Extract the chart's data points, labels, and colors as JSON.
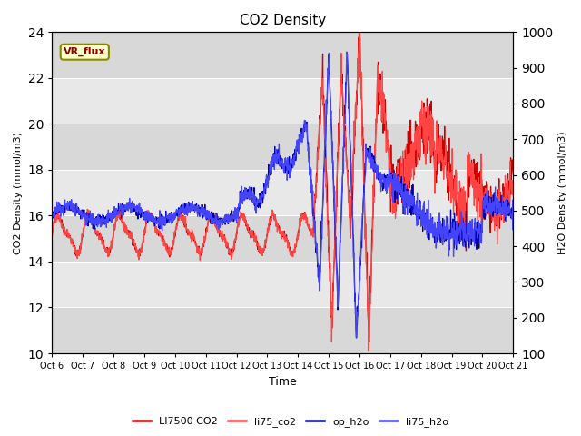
{
  "title": "CO2 Density",
  "xlabel": "Time",
  "ylabel_left": "CO2 Density (mmol/m3)",
  "ylabel_right": "H2O Density (mmol/m3)",
  "ylim_left": [
    10,
    24
  ],
  "ylim_right": [
    100,
    1000
  ],
  "yticks_left": [
    10,
    12,
    14,
    16,
    18,
    20,
    22,
    24
  ],
  "yticks_right": [
    100,
    200,
    300,
    400,
    500,
    600,
    700,
    800,
    900,
    1000
  ],
  "xtick_labels": [
    "Oct 6",
    "Oct 7",
    "Oct 8",
    "Oct 9",
    "Oct 10",
    "Oct 11",
    "Oct 12",
    "Oct 13",
    "Oct 14",
    "Oct 15",
    "Oct 16",
    "Oct 17",
    "Oct 18",
    "Oct 19",
    "Oct 20",
    "Oct 21"
  ],
  "band_colors": [
    "#d8d8d8",
    "#e8e8e8"
  ],
  "vr_flux_label": "VR_flux",
  "legend_entries": [
    "LI7500 CO2",
    "li75_co2",
    "op_h2o",
    "li75_h2o"
  ],
  "series_colors": {
    "LI7500_CO2": "#cc0000",
    "li75_co2": "#ff4444",
    "op_h2o": "#0000aa",
    "li75_h2o": "#4444ff"
  }
}
